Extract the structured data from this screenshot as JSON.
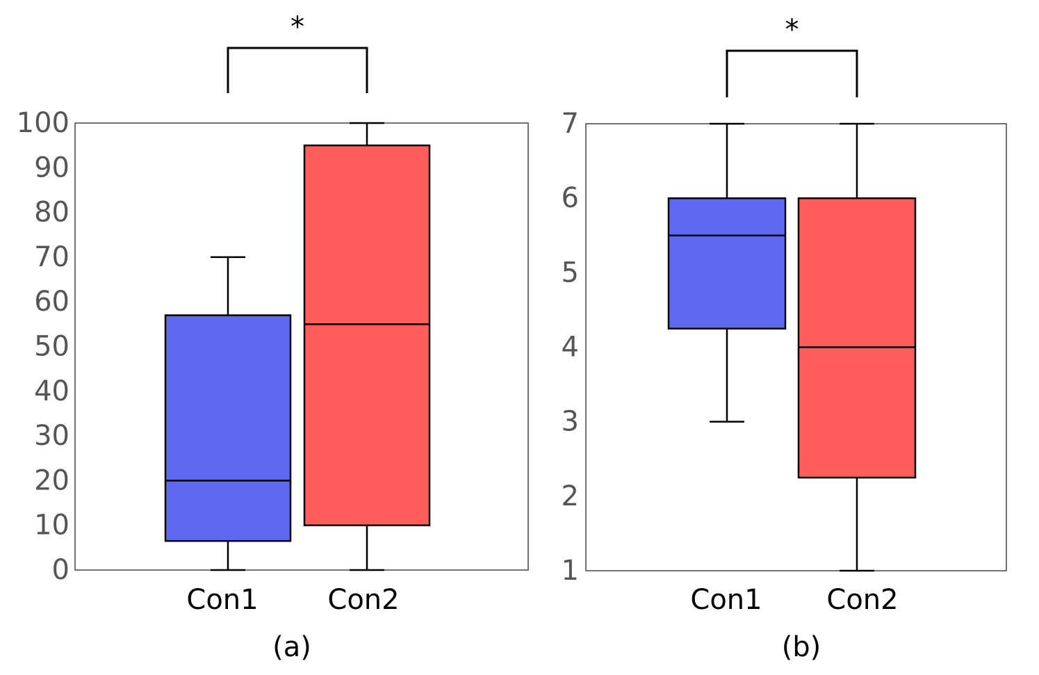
{
  "chart_data": [
    {
      "type": "box",
      "panel_label": "(a)",
      "categories": [
        "Con1",
        "Con2"
      ],
      "ylim": [
        0,
        100
      ],
      "yticks": [
        "0",
        "10",
        "20",
        "30",
        "40",
        "50",
        "60",
        "70",
        "80",
        "90",
        "100"
      ],
      "yticks_values": [
        0,
        10,
        20,
        30,
        40,
        50,
        60,
        70,
        80,
        90,
        100
      ],
      "boxes": [
        {
          "name": "Con1",
          "min": 0,
          "q1": 6.5,
          "median": 20,
          "q3": 57,
          "max": 70,
          "color": "#5f68f0"
        },
        {
          "name": "Con2",
          "min": 0,
          "q1": 10,
          "median": 55,
          "q3": 95,
          "max": 100,
          "color": "#ff5c5c"
        }
      ],
      "significance": {
        "between": [
          "Con1",
          "Con2"
        ],
        "label": "*"
      }
    },
    {
      "type": "box",
      "panel_label": "(b)",
      "categories": [
        "Con1",
        "Con2"
      ],
      "ylim": [
        1,
        7
      ],
      "yticks": [
        "1",
        "2",
        "3",
        "4",
        "5",
        "6",
        "7"
      ],
      "yticks_values": [
        1,
        2,
        3,
        4,
        5,
        6,
        7
      ],
      "boxes": [
        {
          "name": "Con1",
          "min": 3,
          "q1": 4.25,
          "median": 5.5,
          "q3": 6,
          "max": 7,
          "color": "#5f68f0"
        },
        {
          "name": "Con2",
          "min": 1,
          "q1": 2.25,
          "median": 4,
          "q3": 6,
          "max": 7,
          "color": "#ff5c5c"
        }
      ],
      "significance": {
        "between": [
          "Con1",
          "Con2"
        ],
        "label": "*"
      }
    }
  ]
}
